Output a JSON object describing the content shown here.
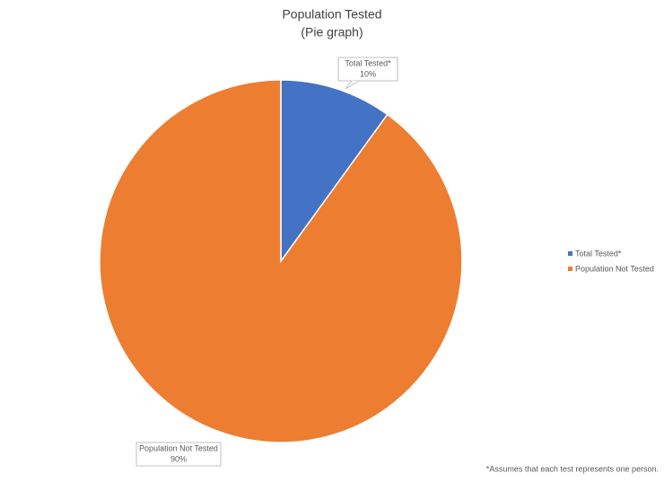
{
  "chart_data": {
    "type": "pie",
    "title": "Population Tested",
    "subtitle": "(Pie graph)",
    "categories": [
      "Total Tested*",
      "Population Not Tested"
    ],
    "values": [
      10,
      90
    ],
    "value_labels": [
      "10%",
      "90%"
    ],
    "colors": [
      "#4472c4",
      "#ed7d31"
    ],
    "legend": "right",
    "footnote": "*Assumes that each test represents one person."
  }
}
